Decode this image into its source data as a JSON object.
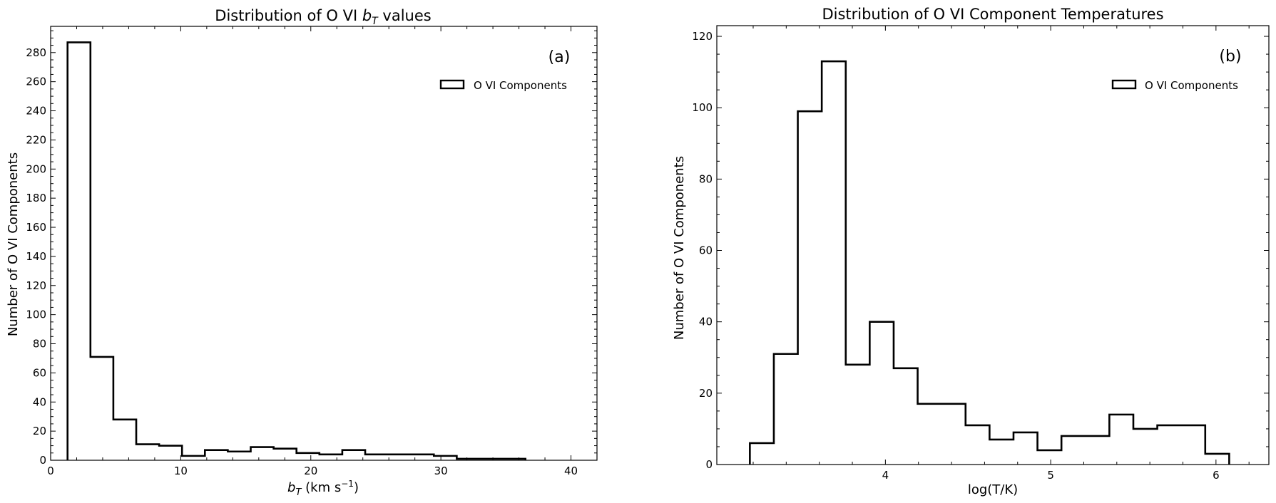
{
  "chart_data": [
    {
      "type": "bar",
      "histtype": "step",
      "title": "Distribution of O VI b_T values",
      "title_parts": {
        "prefix": "Distribution of O VI ",
        "symbol": "b",
        "subscript": "T",
        "suffix": " values"
      },
      "xlabel": "b_T (km s^-1)",
      "xlabel_parts": {
        "symbol": "b",
        "subscript": "T",
        "unit": " (km s",
        "exponent": "−1",
        "close": ")"
      },
      "ylabel": "Number of O VI Components",
      "panel_label": "(a)",
      "legend": {
        "position": "upper-right",
        "entries": [
          "O VI Components"
        ]
      },
      "xlim": [
        0,
        42
      ],
      "ylim": [
        0,
        298
      ],
      "xticks": [
        0,
        10,
        20,
        30,
        40
      ],
      "xtick_labels": [
        "0",
        "10",
        "20",
        "30",
        "40"
      ],
      "yticks": [
        0,
        20,
        40,
        60,
        80,
        100,
        120,
        140,
        160,
        180,
        200,
        220,
        240,
        260,
        280
      ],
      "ytick_labels": [
        "0",
        "20",
        "40",
        "60",
        "80",
        "100",
        "120",
        "140",
        "160",
        "180",
        "200",
        "220",
        "240",
        "260",
        "280"
      ],
      "grid": false,
      "bin_edges": [
        1.3,
        3.06,
        4.82,
        6.58,
        8.34,
        10.1,
        11.86,
        13.62,
        15.38,
        17.14,
        18.9,
        20.66,
        22.42,
        24.18,
        25.94,
        27.7,
        29.46,
        31.22,
        32.98,
        34.74,
        36.5
      ],
      "values": [
        287,
        71,
        28,
        11,
        10,
        3,
        7,
        6,
        9,
        8,
        5,
        4,
        7,
        4,
        4,
        4,
        3,
        1,
        1,
        1
      ]
    },
    {
      "type": "bar",
      "histtype": "step",
      "title": "Distribution of O VI Component Temperatures",
      "xlabel": "log(T/K)",
      "ylabel": "Number of O VI Components",
      "panel_label": "(b)",
      "legend": {
        "position": "upper-right",
        "entries": [
          "O VI Components"
        ]
      },
      "xlim": [
        2.98,
        6.32
      ],
      "ylim": [
        0,
        123
      ],
      "xticks": [
        4,
        5,
        6
      ],
      "xtick_labels": [
        "4",
        "5",
        "6"
      ],
      "yticks": [
        0,
        20,
        40,
        60,
        80,
        100,
        120
      ],
      "ytick_labels": [
        "0",
        "20",
        "40",
        "60",
        "80",
        "100",
        "120"
      ],
      "grid": false,
      "bin_edges": [
        3.18,
        3.325,
        3.47,
        3.615,
        3.76,
        3.905,
        4.05,
        4.195,
        4.34,
        4.485,
        4.63,
        4.775,
        4.92,
        5.065,
        5.21,
        5.355,
        5.5,
        5.645,
        5.79,
        5.935,
        6.08
      ],
      "values": [
        6,
        31,
        99,
        113,
        28,
        40,
        27,
        17,
        17,
        11,
        7,
        9,
        4,
        8,
        8,
        14,
        10,
        11,
        11,
        3
      ]
    }
  ]
}
